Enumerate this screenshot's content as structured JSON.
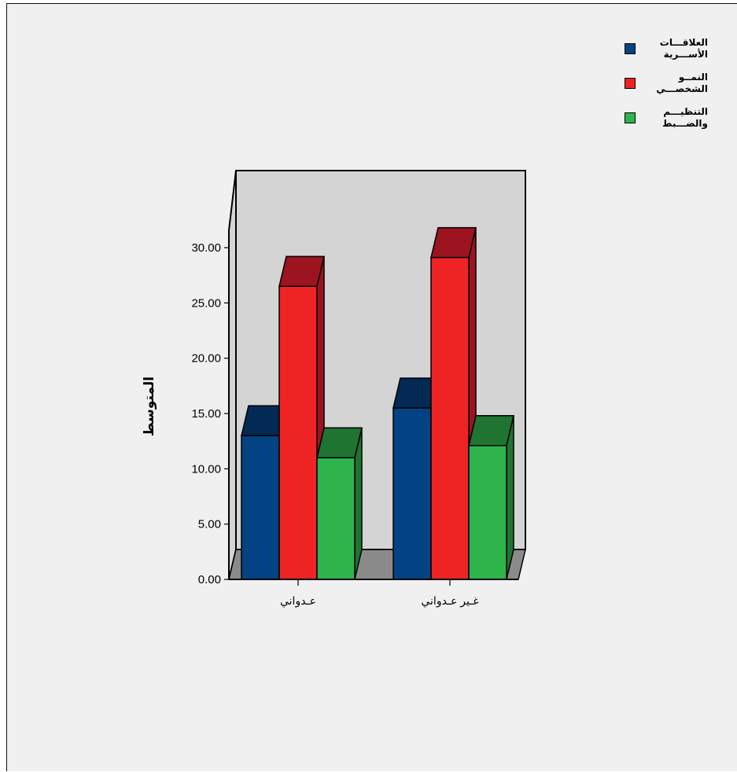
{
  "chart_data": {
    "type": "bar",
    "categories": [
      "عـدواني",
      "غـير عـدواني"
    ],
    "series": [
      {
        "name": "العلاقـــات الأســـرية",
        "values": [
          13.0,
          15.5
        ]
      },
      {
        "name": "النمــو الشخصـــي",
        "values": [
          26.5,
          29.1
        ]
      },
      {
        "name": "التنظيـــم والضـــبط",
        "values": [
          11.0,
          12.1
        ]
      }
    ],
    "ylabel": "المتوسط",
    "xlabel": "",
    "title": "",
    "ylim": [
      0,
      30
    ],
    "yticks": [
      "0.00",
      "5.00",
      "10.00",
      "15.00",
      "20.00",
      "25.00",
      "30.00"
    ],
    "legend": "top-right",
    "grid": false,
    "colors": {
      "series": [
        "#044383",
        "#ee2424",
        "#2db54c"
      ],
      "series_top": [
        "#022a54",
        "#9b1420",
        "#1f7431"
      ],
      "back_wall": "#d4d4d4",
      "floor": "#8a8a8a",
      "background": "#f0f0f0"
    }
  }
}
